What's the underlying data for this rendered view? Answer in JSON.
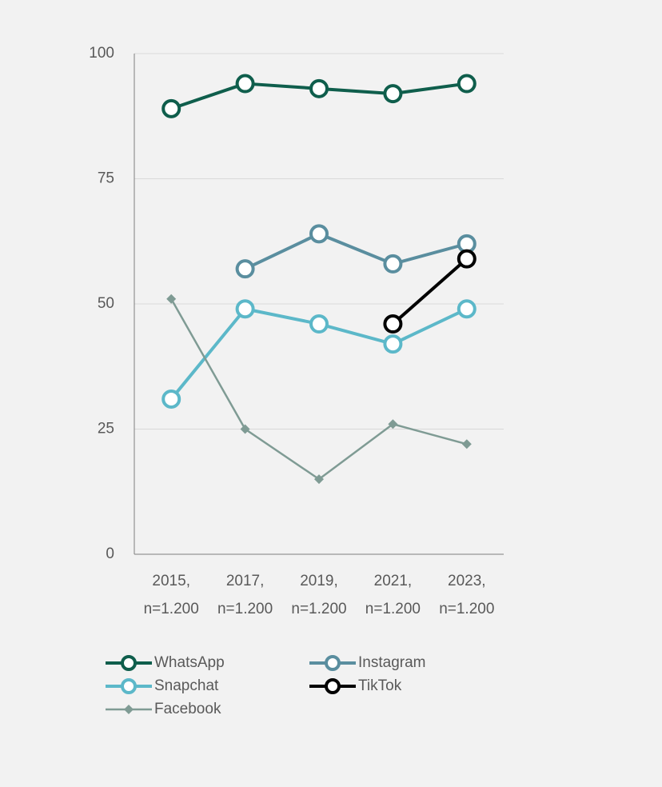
{
  "chart_data": {
    "type": "line",
    "categories": [
      [
        "2015,",
        "n=1.200"
      ],
      [
        "2017,",
        "n=1.200"
      ],
      [
        "2019,",
        "n=1.200"
      ],
      [
        "2021,",
        "n=1.200"
      ],
      [
        "2023,",
        "n=1.200"
      ]
    ],
    "series": [
      {
        "name": "WhatsApp",
        "color": "#0f5e4c",
        "marker": "circle",
        "values": [
          89,
          94,
          93,
          92,
          94
        ]
      },
      {
        "name": "Instagram",
        "color": "#5a8e9f",
        "marker": "circle",
        "values": [
          null,
          57,
          64,
          58,
          62
        ]
      },
      {
        "name": "Snapchat",
        "color": "#5cb8c9",
        "marker": "circle",
        "values": [
          31,
          49,
          46,
          42,
          49
        ]
      },
      {
        "name": "TikTok",
        "color": "#000000",
        "marker": "circle",
        "values": [
          null,
          null,
          null,
          46,
          59
        ]
      },
      {
        "name": "Facebook",
        "color": "#7f9b94",
        "marker": "diamond",
        "values": [
          51,
          25,
          15,
          26,
          22
        ]
      }
    ],
    "ylim": [
      0,
      100
    ],
    "yticks": [
      0,
      25,
      50,
      75,
      100
    ],
    "grid": true,
    "legend": "bottom"
  }
}
